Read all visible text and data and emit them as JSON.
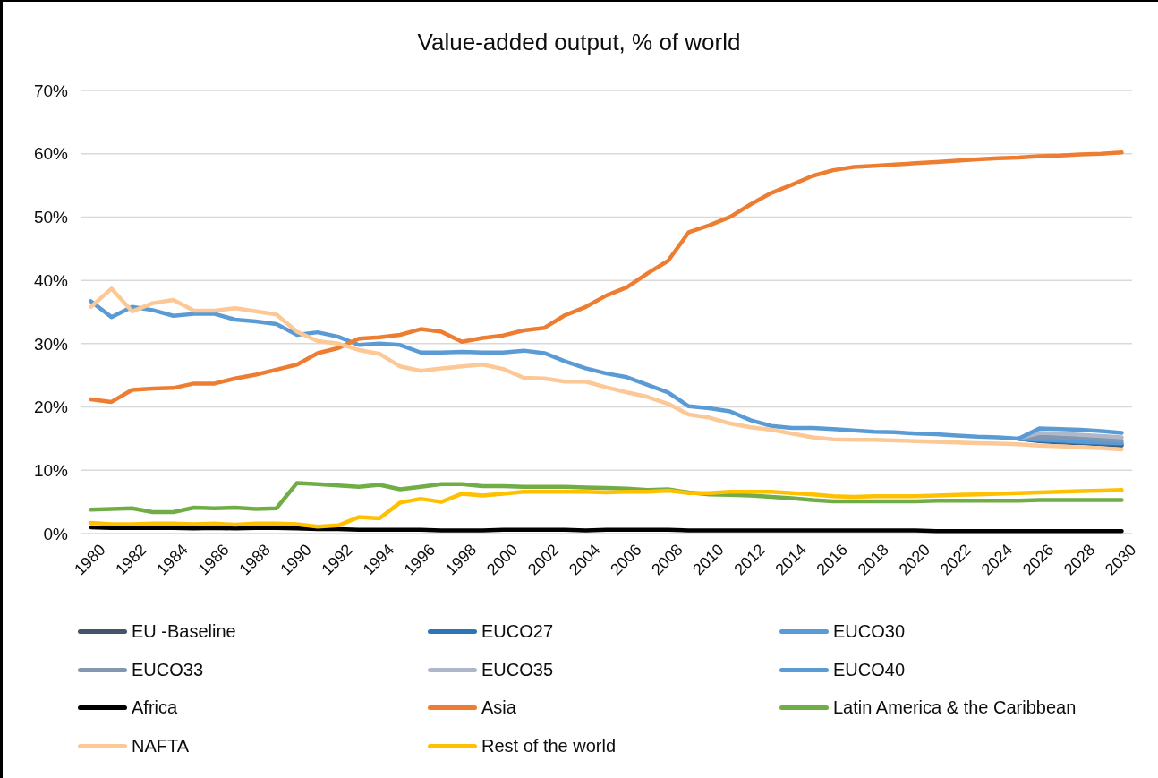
{
  "chart_data": {
    "type": "line",
    "title": "Value-added output, % of world",
    "categories": [
      "1980",
      null,
      "1982",
      null,
      "1984",
      null,
      "1986",
      null,
      "1988",
      null,
      "1990",
      null,
      "1992",
      null,
      "1994",
      null,
      "1996",
      null,
      "1998",
      null,
      "2000",
      null,
      "2002",
      null,
      "2004",
      null,
      "2006",
      null,
      "2008",
      null,
      "2010",
      null,
      "2012",
      null,
      "2014",
      null,
      "2016",
      null,
      "2018",
      null,
      "2020",
      null,
      "2022",
      null,
      "2024",
      null,
      "2026",
      null,
      "2028",
      null,
      "2030"
    ],
    "ylim": [
      0,
      70
    ],
    "yticks": [
      {
        "value": 0,
        "label": "0%"
      },
      {
        "value": 10,
        "label": "10%"
      },
      {
        "value": 20,
        "label": "20%"
      },
      {
        "value": 30,
        "label": "30%"
      },
      {
        "value": 40,
        "label": "40%"
      },
      {
        "value": 50,
        "label": "50%"
      },
      {
        "value": 60,
        "label": "60%"
      },
      {
        "value": 70,
        "label": "70%"
      }
    ],
    "grid": "y",
    "legend": "bottom",
    "marker": "none",
    "line_style": "solid",
    "series": [
      {
        "name": "EU -Baseline",
        "color": "#44546a",
        "values": [
          null,
          null,
          null,
          null,
          null,
          null,
          null,
          null,
          null,
          null,
          null,
          null,
          null,
          null,
          null,
          null,
          null,
          null,
          null,
          null,
          null,
          null,
          null,
          null,
          null,
          null,
          null,
          null,
          null,
          null,
          null,
          null,
          null,
          null,
          null,
          null,
          null,
          null,
          null,
          null,
          null,
          null,
          null,
          null,
          null,
          15.0,
          14.6,
          14.4,
          14.3,
          14.1,
          13.9
        ]
      },
      {
        "name": "EUCO27",
        "color": "#2e75b6",
        "values": [
          null,
          null,
          null,
          null,
          null,
          null,
          null,
          null,
          null,
          null,
          null,
          null,
          null,
          null,
          null,
          null,
          null,
          null,
          null,
          null,
          null,
          null,
          null,
          null,
          null,
          null,
          null,
          null,
          null,
          null,
          null,
          null,
          null,
          null,
          null,
          null,
          null,
          null,
          null,
          null,
          null,
          null,
          null,
          null,
          null,
          15.0,
          14.7,
          14.5,
          14.4,
          14.2,
          14.1
        ]
      },
      {
        "name": "EUCO30",
        "color": "#5b9bd5",
        "values": [
          null,
          null,
          null,
          null,
          null,
          null,
          null,
          null,
          null,
          null,
          null,
          null,
          null,
          null,
          null,
          null,
          null,
          null,
          null,
          null,
          null,
          null,
          null,
          null,
          null,
          null,
          null,
          null,
          null,
          null,
          null,
          null,
          null,
          null,
          null,
          null,
          null,
          null,
          null,
          null,
          null,
          null,
          null,
          null,
          null,
          15.0,
          14.8,
          14.7,
          14.5,
          14.4,
          14.3
        ]
      },
      {
        "name": "EUCO33",
        "color": "#8497b0",
        "values": [
          null,
          null,
          null,
          null,
          null,
          null,
          null,
          null,
          null,
          null,
          null,
          null,
          null,
          null,
          null,
          null,
          null,
          null,
          null,
          null,
          null,
          null,
          null,
          null,
          null,
          null,
          null,
          null,
          null,
          null,
          null,
          null,
          null,
          null,
          null,
          null,
          null,
          null,
          null,
          null,
          null,
          null,
          null,
          null,
          null,
          15.0,
          15.3,
          15.2,
          15.1,
          14.9,
          14.7
        ]
      },
      {
        "name": "EUCO35",
        "color": "#adb9ca",
        "values": [
          null,
          null,
          null,
          null,
          null,
          null,
          null,
          null,
          null,
          null,
          null,
          null,
          null,
          null,
          null,
          null,
          null,
          null,
          null,
          null,
          null,
          null,
          null,
          null,
          null,
          null,
          null,
          null,
          null,
          null,
          null,
          null,
          null,
          null,
          null,
          null,
          null,
          null,
          null,
          null,
          null,
          null,
          null,
          null,
          null,
          15.0,
          15.9,
          15.8,
          15.6,
          15.4,
          15.2
        ]
      },
      {
        "name": "EUCO40",
        "color": "#5b9bd5",
        "values": [
          36.7,
          34.2,
          35.8,
          35.3,
          34.4,
          34.7,
          34.7,
          33.8,
          33.5,
          33.1,
          31.4,
          31.8,
          31.1,
          29.8,
          30.0,
          29.8,
          28.6,
          28.6,
          28.7,
          28.6,
          28.6,
          28.9,
          28.5,
          27.2,
          26.1,
          25.3,
          24.7,
          23.5,
          22.3,
          20.1,
          19.8,
          19.3,
          17.9,
          17.0,
          16.7,
          16.7,
          16.5,
          16.3,
          16.1,
          16.0,
          15.8,
          15.7,
          15.5,
          15.3,
          15.2,
          15.0,
          16.6,
          16.5,
          16.4,
          16.2,
          15.9
        ]
      },
      {
        "name": "Africa",
        "color": "#000000",
        "values": [
          1.0,
          0.9,
          0.9,
          0.9,
          0.9,
          0.8,
          0.9,
          0.8,
          0.9,
          0.9,
          0.8,
          0.7,
          0.7,
          0.6,
          0.6,
          0.6,
          0.6,
          0.5,
          0.5,
          0.5,
          0.6,
          0.6,
          0.6,
          0.6,
          0.5,
          0.6,
          0.6,
          0.6,
          0.6,
          0.5,
          0.5,
          0.5,
          0.5,
          0.5,
          0.5,
          0.5,
          0.5,
          0.5,
          0.5,
          0.5,
          0.5,
          0.4,
          0.4,
          0.4,
          0.4,
          0.4,
          0.4,
          0.4,
          0.4,
          0.4,
          0.4
        ]
      },
      {
        "name": "Asia",
        "color": "#ed7d31",
        "values": [
          21.2,
          20.8,
          22.7,
          22.9,
          23.0,
          23.7,
          23.7,
          24.5,
          25.1,
          25.9,
          26.7,
          28.5,
          29.3,
          30.8,
          31.0,
          31.4,
          32.3,
          31.9,
          30.3,
          30.9,
          31.3,
          32.1,
          32.5,
          34.5,
          35.8,
          37.6,
          38.9,
          41.1,
          43.1,
          47.6,
          48.7,
          50.0,
          52.0,
          53.8,
          55.1,
          56.5,
          57.4,
          57.9,
          58.1,
          58.3,
          58.5,
          58.7,
          58.9,
          59.1,
          59.3,
          59.4,
          59.6,
          59.7,
          59.9,
          60.0,
          60.2
        ]
      },
      {
        "name": "Latin America & the Caribbean",
        "color": "#70ad47",
        "values": [
          3.8,
          3.9,
          4.0,
          3.4,
          3.4,
          4.1,
          4.0,
          4.1,
          3.9,
          4.0,
          8.0,
          7.8,
          7.6,
          7.4,
          7.7,
          7.0,
          7.4,
          7.8,
          7.8,
          7.5,
          7.5,
          7.4,
          7.4,
          7.4,
          7.3,
          7.2,
          7.1,
          6.9,
          7.0,
          6.5,
          6.2,
          6.1,
          6.0,
          5.8,
          5.6,
          5.3,
          5.1,
          5.1,
          5.1,
          5.1,
          5.1,
          5.2,
          5.2,
          5.2,
          5.2,
          5.2,
          5.3,
          5.3,
          5.3,
          5.3,
          5.3
        ]
      },
      {
        "name": "NAFTA",
        "color": "#fcc896",
        "values": [
          35.8,
          38.7,
          35.1,
          36.4,
          36.9,
          35.2,
          35.2,
          35.6,
          35.1,
          34.6,
          31.9,
          30.4,
          30.0,
          29.0,
          28.4,
          26.4,
          25.7,
          26.1,
          26.4,
          26.7,
          26.0,
          24.6,
          24.5,
          24.0,
          24.0,
          23.1,
          22.3,
          21.6,
          20.5,
          18.8,
          18.3,
          17.4,
          16.8,
          16.4,
          15.8,
          15.2,
          14.9,
          14.8,
          14.8,
          14.7,
          14.6,
          14.5,
          14.4,
          14.3,
          14.2,
          14.1,
          13.9,
          13.8,
          13.6,
          13.5,
          13.3
        ]
      },
      {
        "name": "Rest of the world",
        "color": "#ffc000",
        "values": [
          1.7,
          1.5,
          1.5,
          1.6,
          1.6,
          1.5,
          1.6,
          1.4,
          1.6,
          1.6,
          1.5,
          1.1,
          1.3,
          2.6,
          2.4,
          4.9,
          5.5,
          5.0,
          6.3,
          6.0,
          6.3,
          6.6,
          6.6,
          6.6,
          6.6,
          6.5,
          6.6,
          6.6,
          6.8,
          6.4,
          6.4,
          6.6,
          6.6,
          6.6,
          6.4,
          6.2,
          5.9,
          5.8,
          5.9,
          5.9,
          5.9,
          6.0,
          6.1,
          6.2,
          6.3,
          6.4,
          6.5,
          6.6,
          6.7,
          6.8,
          6.9
        ]
      }
    ]
  }
}
